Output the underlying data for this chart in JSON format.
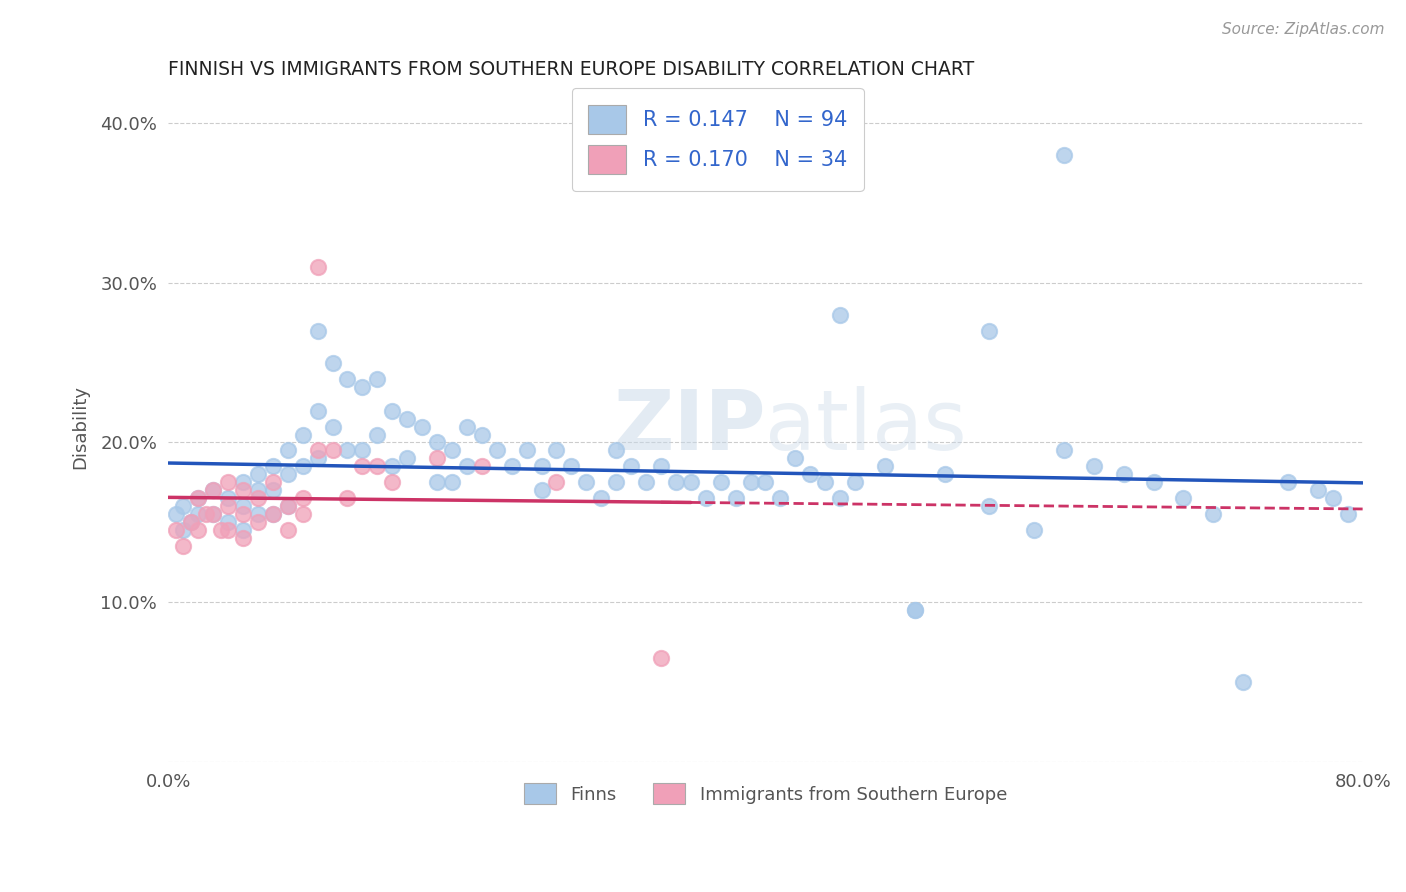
{
  "title": "FINNISH VS IMMIGRANTS FROM SOUTHERN EUROPE DISABILITY CORRELATION CHART",
  "source": "Source: ZipAtlas.com",
  "ylabel": "Disability",
  "xlabel": "",
  "xlim": [
    0.0,
    0.8
  ],
  "ylim": [
    0.0,
    0.42
  ],
  "xtick_positions": [
    0.0,
    0.1,
    0.2,
    0.3,
    0.4,
    0.5,
    0.6,
    0.7,
    0.8
  ],
  "xticklabels": [
    "0.0%",
    "",
    "",
    "",
    "",
    "",
    "",
    "",
    "80.0%"
  ],
  "ytick_positions": [
    0.0,
    0.1,
    0.2,
    0.3,
    0.4
  ],
  "yticklabels": [
    "",
    "10.0%",
    "20.0%",
    "30.0%",
    "40.0%"
  ],
  "R_finns": 0.147,
  "N_finns": 94,
  "R_immigrants": 0.17,
  "N_immigrants": 34,
  "legend_label_finns": "Finns",
  "legend_label_immigrants": "Immigrants from Southern Europe",
  "color_finns": "#a8c8e8",
  "color_immigrants": "#f0a0b8",
  "trendline_finns_color": "#2255bb",
  "trendline_immigrants_color": "#cc3366",
  "watermark": "ZIPatlas",
  "finns_x": [
    0.005,
    0.01,
    0.01,
    0.015,
    0.02,
    0.02,
    0.03,
    0.03,
    0.04,
    0.04,
    0.05,
    0.05,
    0.05,
    0.06,
    0.06,
    0.06,
    0.07,
    0.07,
    0.07,
    0.08,
    0.08,
    0.08,
    0.09,
    0.09,
    0.1,
    0.1,
    0.1,
    0.11,
    0.11,
    0.12,
    0.12,
    0.13,
    0.13,
    0.14,
    0.14,
    0.15,
    0.15,
    0.16,
    0.16,
    0.17,
    0.18,
    0.18,
    0.19,
    0.19,
    0.2,
    0.2,
    0.21,
    0.22,
    0.23,
    0.24,
    0.25,
    0.25,
    0.26,
    0.27,
    0.28,
    0.29,
    0.3,
    0.3,
    0.31,
    0.32,
    0.33,
    0.34,
    0.35,
    0.36,
    0.37,
    0.38,
    0.39,
    0.4,
    0.41,
    0.42,
    0.43,
    0.44,
    0.45,
    0.46,
    0.48,
    0.5,
    0.52,
    0.55,
    0.58,
    0.6,
    0.62,
    0.64,
    0.66,
    0.68,
    0.7,
    0.72,
    0.75,
    0.77,
    0.78,
    0.79,
    0.45,
    0.5,
    0.55,
    0.6
  ],
  "finns_y": [
    0.155,
    0.145,
    0.16,
    0.15,
    0.165,
    0.155,
    0.17,
    0.155,
    0.165,
    0.15,
    0.175,
    0.16,
    0.145,
    0.18,
    0.17,
    0.155,
    0.185,
    0.17,
    0.155,
    0.195,
    0.18,
    0.16,
    0.205,
    0.185,
    0.27,
    0.22,
    0.19,
    0.25,
    0.21,
    0.24,
    0.195,
    0.235,
    0.195,
    0.24,
    0.205,
    0.22,
    0.185,
    0.215,
    0.19,
    0.21,
    0.2,
    0.175,
    0.195,
    0.175,
    0.21,
    0.185,
    0.205,
    0.195,
    0.185,
    0.195,
    0.185,
    0.17,
    0.195,
    0.185,
    0.175,
    0.165,
    0.195,
    0.175,
    0.185,
    0.175,
    0.185,
    0.175,
    0.175,
    0.165,
    0.175,
    0.165,
    0.175,
    0.175,
    0.165,
    0.19,
    0.18,
    0.175,
    0.165,
    0.175,
    0.185,
    0.095,
    0.18,
    0.16,
    0.145,
    0.195,
    0.185,
    0.18,
    0.175,
    0.165,
    0.155,
    0.05,
    0.175,
    0.17,
    0.165,
    0.155,
    0.28,
    0.095,
    0.27,
    0.38
  ],
  "immigrants_x": [
    0.005,
    0.01,
    0.015,
    0.02,
    0.02,
    0.025,
    0.03,
    0.03,
    0.035,
    0.04,
    0.04,
    0.04,
    0.05,
    0.05,
    0.05,
    0.06,
    0.06,
    0.07,
    0.07,
    0.08,
    0.08,
    0.09,
    0.09,
    0.1,
    0.1,
    0.11,
    0.12,
    0.13,
    0.14,
    0.15,
    0.18,
    0.21,
    0.26,
    0.33
  ],
  "immigrants_y": [
    0.145,
    0.135,
    0.15,
    0.165,
    0.145,
    0.155,
    0.17,
    0.155,
    0.145,
    0.175,
    0.16,
    0.145,
    0.17,
    0.155,
    0.14,
    0.165,
    0.15,
    0.175,
    0.155,
    0.16,
    0.145,
    0.165,
    0.155,
    0.31,
    0.195,
    0.195,
    0.165,
    0.185,
    0.185,
    0.175,
    0.19,
    0.185,
    0.175,
    0.065
  ]
}
